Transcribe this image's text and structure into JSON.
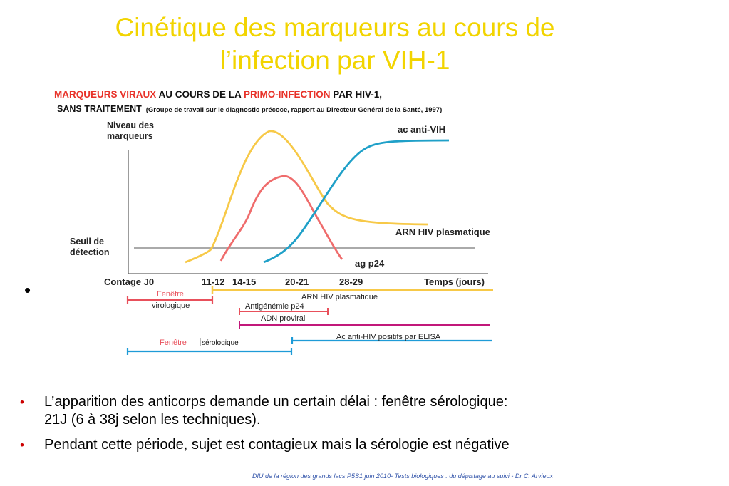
{
  "slide": {
    "title_line1": "Cinétique des marqueurs au cours de",
    "title_line2": "l’infection par VIH-1",
    "stray_bullet": "•",
    "bullets": [
      {
        "marker": "•",
        "text_line1": "L’apparition des anticorps demande un certain délai : fenêtre sérologique:",
        "text_line2": "21J (6 à 38j selon les techniques)."
      },
      {
        "marker": "•",
        "text_line1": "Pendant cette période, sujet est contagieux mais la sérologie est négative"
      }
    ],
    "footer": "DIU de la région des grands lacs P5S1 juin 2010- Tests biologiques : du dépistage au suivi - Dr C. Arvieux"
  },
  "figure": {
    "header_part1": "MARQUEURS VIRAUX",
    "header_part2": " AU COURS DE LA ",
    "header_part3": "PRIMO-INFECTION",
    "header_part4": " PAR HIV-1,",
    "header_line2_bold": "SANS TRAITEMENT",
    "header_line2_small": "(Groupe de travail sur le diagnostic précoce, rapport au  Directeur Général de la Santé, 1997)",
    "y_label_line1": "Niveau des",
    "y_label_line2": "marqueurs",
    "threshold_line1": "Seuil de",
    "threshold_line2": "détection",
    "x_origin_label": "Contage J0",
    "x_ticks": [
      "11-12",
      "14-15",
      "20-21",
      "28-29"
    ],
    "x_axis_label": "Temps (jours)",
    "curve_labels": {
      "antibody": "ac anti-VIH",
      "rna": "ARN HIV plasmatique",
      "p24": "ag p24"
    },
    "windows": {
      "viro_line1": "Fenêtre",
      "viro_line2": "virologique",
      "rna": "ARN HIV plasmatique",
      "p24": "Antigénémie p24",
      "adn": "ADN proviral",
      "elisa": "Ac anti-HIV positifs par ELISA",
      "sero_word1": "Fenêtre",
      "sero_word2": "sérologique"
    },
    "colors": {
      "red": "#e8332a",
      "yellow": "#f7c948",
      "pink_curve": "#ef6c6c",
      "blue": "#1fa0c8",
      "magenta": "#c2187a",
      "window_red": "#e8505b",
      "window_blue": "#1e9bd7"
    }
  }
}
